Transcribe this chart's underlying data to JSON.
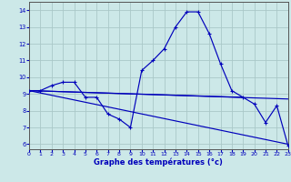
{
  "title": "Graphe des températures (°c)",
  "bg_color": "#cce8e8",
  "grid_color": "#aac8c8",
  "line_color": "#0000bb",
  "spine_color": "#555555",
  "x_ticks": [
    0,
    1,
    2,
    3,
    4,
    5,
    6,
    7,
    8,
    9,
    10,
    11,
    12,
    13,
    14,
    15,
    16,
    17,
    18,
    19,
    20,
    21,
    22,
    23
  ],
  "y_ticks": [
    6,
    7,
    8,
    9,
    10,
    11,
    12,
    13,
    14
  ],
  "xlim": [
    0,
    23
  ],
  "ylim": [
    5.7,
    14.5
  ],
  "temp_curve_x": [
    0,
    1,
    2,
    3,
    4,
    5,
    6,
    7,
    8,
    9,
    10,
    11,
    12,
    13,
    14,
    15,
    16,
    17,
    18,
    19,
    20,
    21,
    22,
    23
  ],
  "temp_curve_y": [
    9.2,
    9.2,
    9.5,
    9.7,
    9.7,
    8.8,
    8.8,
    7.8,
    7.5,
    7.0,
    10.4,
    11.0,
    11.7,
    13.0,
    13.9,
    13.9,
    12.6,
    10.8,
    9.2,
    8.8,
    8.4,
    7.3,
    8.3,
    5.9
  ],
  "trend1_x": [
    0,
    23
  ],
  "trend1_y": [
    9.2,
    8.7
  ],
  "trend2_x": [
    0,
    19
  ],
  "trend2_y": [
    9.2,
    8.8
  ],
  "trend3_x": [
    0,
    23
  ],
  "trend3_y": [
    9.2,
    6.0
  ]
}
